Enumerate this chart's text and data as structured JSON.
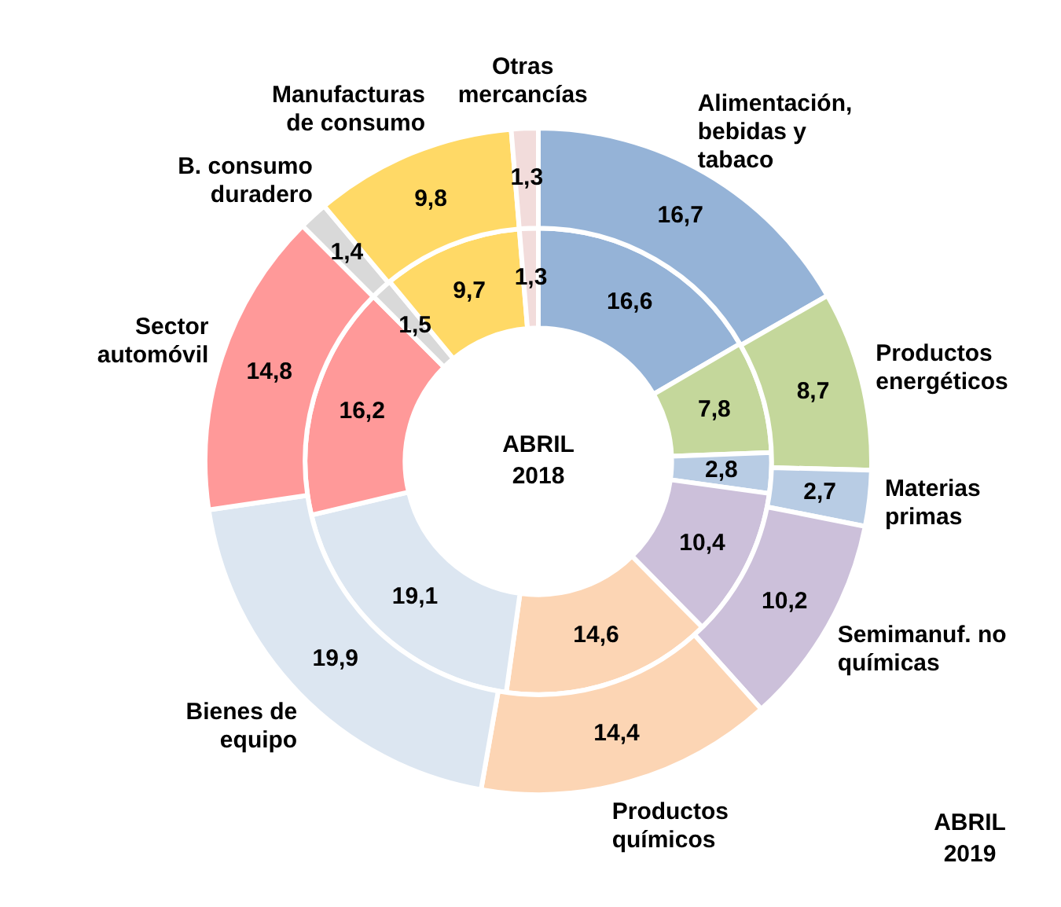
{
  "chart_data": {
    "type": "donut",
    "categories": [
      "Alimentación, bebidas y tabaco",
      "Productos energéticos",
      "Materias primas",
      "Semimanuf. no químicas",
      "Productos químicos",
      "Bienes de equipo",
      "Sector automóvil",
      "B. consumo duradero",
      "Manufacturas de consumo",
      "Otras mercancías"
    ],
    "colors": [
      "#95b3d7",
      "#c4d79b",
      "#b8cce4",
      "#ccc0da",
      "#fcd5b4",
      "#dce6f1",
      "#ff9999",
      "#d9d9d9",
      "#ffd966",
      "#f2dcdb"
    ],
    "series": [
      {
        "name": "ABRIL 2019",
        "values": [
          16.7,
          8.7,
          2.7,
          10.2,
          14.4,
          19.9,
          14.8,
          1.4,
          9.8,
          1.3
        ],
        "value_labels": [
          "16,7",
          "8,7",
          "2,7",
          "10,2",
          "14,4",
          "19,9",
          "14,8",
          "1,4",
          "9,8",
          "1,3"
        ]
      },
      {
        "name": "ABRIL 2018",
        "values": [
          16.6,
          7.8,
          2.8,
          10.4,
          14.6,
          19.1,
          16.2,
          1.5,
          9.7,
          1.3
        ],
        "value_labels": [
          "16,6",
          "7,8",
          "2,8",
          "10,4",
          "14,6",
          "19,1",
          "16,2",
          "1,5",
          "9,7",
          "1,3"
        ]
      }
    ],
    "legend": false
  }
}
